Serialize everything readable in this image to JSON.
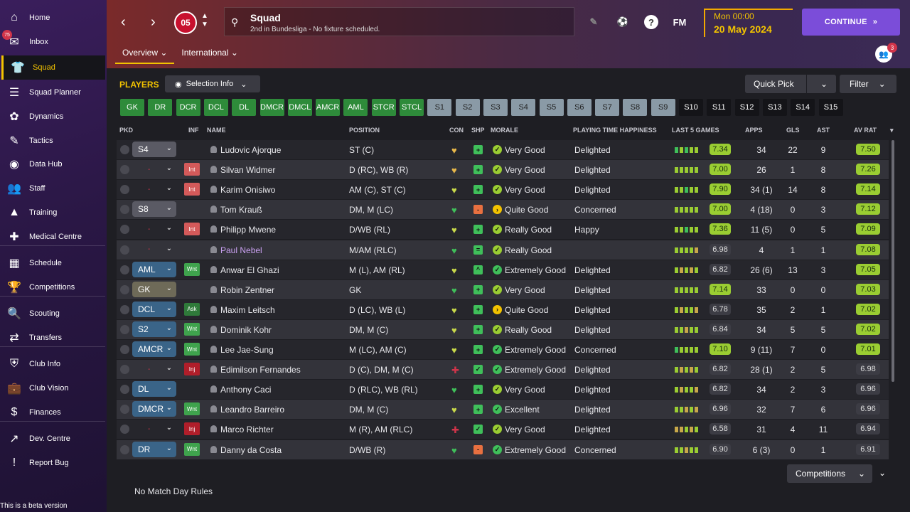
{
  "sidebar": {
    "items": [
      {
        "label": "Home",
        "icon": "home-icon",
        "glyph": "⌂"
      },
      {
        "label": "Inbox",
        "icon": "inbox-icon",
        "glyph": "✉"
      },
      {
        "label": "Squad",
        "icon": "squad-icon",
        "glyph": "👕"
      },
      {
        "label": "Squad Planner",
        "icon": "clipboard-icon",
        "glyph": "☰"
      },
      {
        "label": "Dynamics",
        "icon": "dynamics-icon",
        "glyph": "✿"
      },
      {
        "label": "Tactics",
        "icon": "tactics-icon",
        "glyph": "✎"
      },
      {
        "label": "Data Hub",
        "icon": "data-hub-icon",
        "glyph": "◉"
      },
      {
        "label": "Staff",
        "icon": "staff-icon",
        "glyph": "👥"
      },
      {
        "label": "Training",
        "icon": "training-icon",
        "glyph": "▲"
      },
      {
        "label": "Medical Centre",
        "icon": "medical-icon",
        "glyph": "✚"
      },
      {
        "label": "Schedule",
        "icon": "calendar-icon",
        "glyph": "▦"
      },
      {
        "label": "Competitions",
        "icon": "trophy-icon",
        "glyph": "🏆"
      },
      {
        "label": "Scouting",
        "icon": "search-icon",
        "glyph": "🔍"
      },
      {
        "label": "Transfers",
        "icon": "transfers-icon",
        "glyph": "⇄"
      },
      {
        "label": "Club Info",
        "icon": "shield-icon",
        "glyph": "⛨"
      },
      {
        "label": "Club Vision",
        "icon": "briefcase-icon",
        "glyph": "💼"
      },
      {
        "label": "Finances",
        "icon": "finances-icon",
        "glyph": "$"
      },
      {
        "label": "Dev. Centre",
        "icon": "dev-centre-icon",
        "glyph": "↗"
      },
      {
        "label": "Report Bug",
        "icon": "alert-icon",
        "glyph": "!"
      }
    ],
    "inbox_badge": "75",
    "beta_text": "This is a beta version"
  },
  "header": {
    "title": "Squad",
    "subtitle": "2nd in Bundesliga - No fixture scheduled.",
    "crest_text": "05",
    "fm_label": "FM",
    "time": "Mon 00:00",
    "date": "20 May 2024",
    "continue_label": "CONTINUE",
    "tabs": [
      "Overview",
      "International"
    ],
    "social_badge": "3"
  },
  "main": {
    "players_label": "PLAYERS",
    "selection_info": "Selection Info",
    "quick_pick": "Quick Pick",
    "filter": "Filter",
    "competitions": "Competitions",
    "no_rules": "No Match Day Rules"
  },
  "position_tabs": [
    {
      "label": "GK",
      "style": "g"
    },
    {
      "label": "DR",
      "style": "g"
    },
    {
      "label": "DCR",
      "style": "g"
    },
    {
      "label": "DCL",
      "style": "g"
    },
    {
      "label": "DL",
      "style": "g"
    },
    {
      "label": "DMCR",
      "style": "g"
    },
    {
      "label": "DMCL",
      "style": "g"
    },
    {
      "label": "AMCR",
      "style": "g"
    },
    {
      "label": "AML",
      "style": "g"
    },
    {
      "label": "STCR",
      "style": "g"
    },
    {
      "label": "STCL",
      "style": "g"
    },
    {
      "label": "S1",
      "style": "s"
    },
    {
      "label": "S2",
      "style": "s"
    },
    {
      "label": "S3",
      "style": "s"
    },
    {
      "label": "S4",
      "style": "s"
    },
    {
      "label": "S5",
      "style": "s"
    },
    {
      "label": "S6",
      "style": "s"
    },
    {
      "label": "S7",
      "style": "s"
    },
    {
      "label": "S8",
      "style": "s"
    },
    {
      "label": "S9",
      "style": "s"
    },
    {
      "label": "S10",
      "style": "d"
    },
    {
      "label": "S11",
      "style": "d"
    },
    {
      "label": "S12",
      "style": "d"
    },
    {
      "label": "S13",
      "style": "d"
    },
    {
      "label": "S14",
      "style": "d"
    },
    {
      "label": "S15",
      "style": "d"
    }
  ],
  "columns": {
    "pkd": "PKD",
    "inf": "INF",
    "name": "NAME",
    "position": "POSITION",
    "con": "CON",
    "shp": "SHP",
    "morale": "MORALE",
    "happiness": "PLAYING TIME HAPPINESS",
    "last5": "LAST 5 GAMES",
    "apps": "APPS",
    "gls": "GLS",
    "ast": "AST",
    "avrat": "AV RAT"
  },
  "players": [
    {
      "pkd": "S4",
      "pill": "grey",
      "inf": "",
      "name": "Ludovic Ajorque",
      "position": "ST (C)",
      "con": "#e8b84a",
      "shp": "#3fbf5a",
      "shp_g": "+",
      "mor": "#9acd32",
      "mor_g": "✓",
      "morale": "Very Good",
      "happiness": "Delighted",
      "form": [
        "#3fbf5a",
        "#9acd32",
        "#3fbf5a",
        "#9acd32",
        "#9acd32"
      ],
      "last5": "7.34",
      "l5hi": true,
      "apps": "34",
      "gls": "22",
      "ast": "9",
      "avrat": "7.50",
      "avhi": true
    },
    {
      "pkd": "-",
      "pill": "none",
      "inf": "Int",
      "infc": "int",
      "name": "Silvan Widmer",
      "position": "D (RC), WB (R)",
      "con": "#e8b84a",
      "shp": "#3fbf5a",
      "shp_g": "+",
      "mor": "#9acd32",
      "mor_g": "✓",
      "morale": "Very Good",
      "happiness": "Delighted",
      "form": [
        "#9acd32",
        "#9acd32",
        "#9acd32",
        "#9acd32",
        "#9acd32"
      ],
      "last5": "7.00",
      "l5hi": true,
      "apps": "26",
      "gls": "1",
      "ast": "8",
      "avrat": "7.26",
      "avhi": true
    },
    {
      "pkd": "-",
      "pill": "none",
      "inf": "Int",
      "infc": "int",
      "name": "Karim Onisiwo",
      "position": "AM (C), ST (C)",
      "con": "#c8d84a",
      "shp": "#3fbf5a",
      "shp_g": "+",
      "mor": "#9acd32",
      "mor_g": "✓",
      "morale": "Very Good",
      "happiness": "Delighted",
      "form": [
        "#9acd32",
        "#9acd32",
        "#3fbf5a",
        "#9acd32",
        "#9acd32"
      ],
      "last5": "7.90",
      "l5hi": true,
      "apps": "34 (1)",
      "gls": "14",
      "ast": "8",
      "avrat": "7.14",
      "avhi": true
    },
    {
      "pkd": "S8",
      "pill": "grey",
      "inf": "",
      "name": "Tom Krauß",
      "position": "DM, M (LC)",
      "con": "#3fbf5a",
      "shp": "#e87040",
      "shp_g": "-",
      "mor": "#f2c300",
      "mor_g": "›",
      "morale": "Quite Good",
      "happiness": "Concerned",
      "form": [
        "#9acd32",
        "#9acd32",
        "#9acd32",
        "#9acd32",
        "#9acd32"
      ],
      "last5": "7.00",
      "l5hi": true,
      "apps": "4 (18)",
      "gls": "0",
      "ast": "3",
      "avrat": "7.12",
      "avhi": true
    },
    {
      "pkd": "-",
      "pill": "none",
      "inf": "Int",
      "infc": "int",
      "name": "Philipp Mwene",
      "position": "D/WB (RL)",
      "con": "#c8d84a",
      "shp": "#3fbf5a",
      "shp_g": "+",
      "mor": "#9acd32",
      "mor_g": "✓",
      "morale": "Really Good",
      "happiness": "Happy",
      "form": [
        "#9acd32",
        "#9acd32",
        "#3fbf5a",
        "#9acd32",
        "#9acd32"
      ],
      "last5": "7.36",
      "l5hi": true,
      "apps": "11 (5)",
      "gls": "0",
      "ast": "5",
      "avrat": "7.09",
      "avhi": true
    },
    {
      "pkd": "-",
      "pill": "none",
      "inf": "",
      "name": "Paul Nebel",
      "link": true,
      "position": "M/AM (RLC)",
      "con": "#3fbf5a",
      "shp": "#3fbf5a",
      "shp_g": "=",
      "mor": "#9acd32",
      "mor_g": "✓",
      "morale": "Really Good",
      "happiness": "",
      "form": [
        "#9acd32",
        "#9acd32",
        "#9acd32",
        "#9acd32",
        "#c8a84a"
      ],
      "last5": "6.98",
      "l5hi": false,
      "apps": "4",
      "gls": "1",
      "ast": "1",
      "avrat": "7.08",
      "avhi": true
    },
    {
      "pkd": "AML",
      "pill": "blue",
      "inf": "Wnt",
      "infc": "wnt",
      "name": "Anwar El Ghazi",
      "position": "M (L), AM (RL)",
      "con": "#c8d84a",
      "shp": "#3fbf5a",
      "shp_g": "^",
      "mor": "#3fbf5a",
      "mor_g": "✓",
      "morale": "Extremely Good",
      "happiness": "Delighted",
      "form": [
        "#9acd32",
        "#c8a84a",
        "#9acd32",
        "#c8a84a",
        "#9acd32"
      ],
      "last5": "6.82",
      "l5hi": false,
      "apps": "26 (6)",
      "gls": "13",
      "ast": "3",
      "avrat": "7.05",
      "avhi": true
    },
    {
      "pkd": "GK",
      "pill": "brown",
      "inf": "",
      "name": "Robin Zentner",
      "position": "GK",
      "con": "#3fbf5a",
      "shp": "#3fbf5a",
      "shp_g": "+",
      "mor": "#9acd32",
      "mor_g": "✓",
      "morale": "Very Good",
      "happiness": "Delighted",
      "form": [
        "#9acd32",
        "#9acd32",
        "#9acd32",
        "#9acd32",
        "#9acd32"
      ],
      "last5": "7.14",
      "l5hi": true,
      "apps": "33",
      "gls": "0",
      "ast": "0",
      "avrat": "7.03",
      "avhi": true
    },
    {
      "pkd": "DCL",
      "pill": "blue",
      "inf": "Ask",
      "infc": "ask",
      "name": "Maxim Leitsch",
      "position": "D (LC), WB (L)",
      "con": "#c8d84a",
      "shp": "#3fbf5a",
      "shp_g": "+",
      "mor": "#f2c300",
      "mor_g": "›",
      "morale": "Quite Good",
      "happiness": "Delighted",
      "form": [
        "#9acd32",
        "#c8a84a",
        "#9acd32",
        "#9acd32",
        "#c8a84a"
      ],
      "last5": "6.78",
      "l5hi": false,
      "apps": "35",
      "gls": "2",
      "ast": "1",
      "avrat": "7.02",
      "avhi": true
    },
    {
      "pkd": "S2",
      "pill": "blue",
      "inf": "Wnt",
      "infc": "wnt",
      "name": "Dominik Kohr",
      "position": "DM, M (C)",
      "con": "#c8d84a",
      "shp": "#3fbf5a",
      "shp_g": "+",
      "mor": "#9acd32",
      "mor_g": "✓",
      "morale": "Really Good",
      "happiness": "Delighted",
      "form": [
        "#9acd32",
        "#9acd32",
        "#c8a84a",
        "#9acd32",
        "#9acd32"
      ],
      "last5": "6.84",
      "l5hi": false,
      "apps": "34",
      "gls": "5",
      "ast": "5",
      "avrat": "7.02",
      "avhi": true
    },
    {
      "pkd": "AMCR",
      "pill": "blue",
      "inf": "Wnt",
      "infc": "wnt",
      "name": "Lee Jae-Sung",
      "position": "M (LC), AM (C)",
      "con": "#c8d84a",
      "shp": "#3fbf5a",
      "shp_g": "+",
      "mor": "#3fbf5a",
      "mor_g": "✓",
      "morale": "Extremely Good",
      "happiness": "Concerned",
      "form": [
        "#3fbf5a",
        "#9acd32",
        "#9acd32",
        "#9acd32",
        "#9acd32"
      ],
      "last5": "7.10",
      "l5hi": true,
      "apps": "9 (11)",
      "gls": "7",
      "ast": "0",
      "avrat": "7.01",
      "avhi": true
    },
    {
      "pkd": "-",
      "pill": "none",
      "inf": "Inj",
      "infc": "inj",
      "name": "Edimilson Fernandes",
      "position": "D (C), DM, M (C)",
      "con": "#d0344a",
      "shp": "#3fbf5a",
      "shp_g": "✓",
      "mor": "#3fbf5a",
      "mor_g": "✓",
      "morale": "Extremely Good",
      "happiness": "Delighted",
      "form": [
        "#9acd32",
        "#c8a84a",
        "#9acd32",
        "#c8a84a",
        "#9acd32"
      ],
      "last5": "6.82",
      "l5hi": false,
      "apps": "28 (1)",
      "gls": "2",
      "ast": "5",
      "avrat": "6.98",
      "avhi": false
    },
    {
      "pkd": "DL",
      "pill": "blue",
      "inf": "",
      "name": "Anthony Caci",
      "position": "D (RLC), WB (RL)",
      "con": "#3fbf5a",
      "shp": "#3fbf5a",
      "shp_g": "+",
      "mor": "#9acd32",
      "mor_g": "✓",
      "morale": "Very Good",
      "happiness": "Delighted",
      "form": [
        "#9acd32",
        "#c8a84a",
        "#9acd32",
        "#9acd32",
        "#c8a84a"
      ],
      "last5": "6.82",
      "l5hi": false,
      "apps": "34",
      "gls": "2",
      "ast": "3",
      "avrat": "6.96",
      "avhi": false
    },
    {
      "pkd": "DMCR",
      "pill": "blue",
      "inf": "Wnt",
      "infc": "wnt",
      "name": "Leandro Barreiro",
      "position": "DM, M (C)",
      "con": "#c8d84a",
      "shp": "#3fbf5a",
      "shp_g": "+",
      "mor": "#3fbf5a",
      "mor_g": "✓",
      "morale": "Excellent",
      "happiness": "Delighted",
      "form": [
        "#9acd32",
        "#9acd32",
        "#c8a84a",
        "#9acd32",
        "#c8a84a"
      ],
      "last5": "6.96",
      "l5hi": false,
      "apps": "32",
      "gls": "7",
      "ast": "6",
      "avrat": "6.96",
      "avhi": false
    },
    {
      "pkd": "-",
      "pill": "none",
      "inf": "Inj",
      "infc": "inj",
      "name": "Marco Richter",
      "position": "M (R), AM (RLC)",
      "con": "#d0344a",
      "shp": "#3fbf5a",
      "shp_g": "✓",
      "mor": "#9acd32",
      "mor_g": "✓",
      "morale": "Very Good",
      "happiness": "Delighted",
      "form": [
        "#c8a84a",
        "#c8a84a",
        "#9acd32",
        "#c8a84a",
        "#9acd32"
      ],
      "last5": "6.58",
      "l5hi": false,
      "apps": "31",
      "gls": "4",
      "ast": "11",
      "avrat": "6.94",
      "avhi": false
    },
    {
      "pkd": "DR",
      "pill": "blue",
      "inf": "Wnt",
      "infc": "wnt",
      "name": "Danny da Costa",
      "position": "D/WB (R)",
      "con": "#3fbf5a",
      "shp": "#e87040",
      "shp_g": "-",
      "mor": "#3fbf5a",
      "mor_g": "✓",
      "morale": "Extremely Good",
      "happiness": "Concerned",
      "form": [
        "#9acd32",
        "#9acd32",
        "#c8a84a",
        "#9acd32",
        "#9acd32"
      ],
      "last5": "6.90",
      "l5hi": false,
      "apps": "6 (3)",
      "gls": "0",
      "ast": "1",
      "avrat": "6.91",
      "avhi": false
    }
  ]
}
